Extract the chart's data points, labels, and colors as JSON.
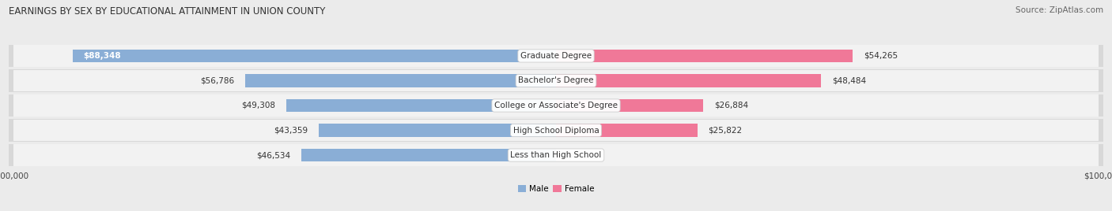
{
  "title": "EARNINGS BY SEX BY EDUCATIONAL ATTAINMENT IN UNION COUNTY",
  "source": "Source: ZipAtlas.com",
  "categories": [
    "Less than High School",
    "High School Diploma",
    "College or Associate's Degree",
    "Bachelor's Degree",
    "Graduate Degree"
  ],
  "male_values": [
    46534,
    43359,
    49308,
    56786,
    88348
  ],
  "female_values": [
    0,
    25822,
    26884,
    48484,
    54265
  ],
  "male_color": "#8aaed6",
  "female_color": "#f07898",
  "male_label": "Male",
  "female_label": "Female",
  "bar_height": 0.52,
  "xlim": 100000,
  "bg_color": "#ebebeb",
  "row_bg_outer": "#d8d8d8",
  "row_bg_inner": "#f2f2f2",
  "label_fontsize": 7.5,
  "title_fontsize": 8.5,
  "source_fontsize": 7.5,
  "cat_label_fontsize": 7.5,
  "axis_label_fontsize": 7.5
}
